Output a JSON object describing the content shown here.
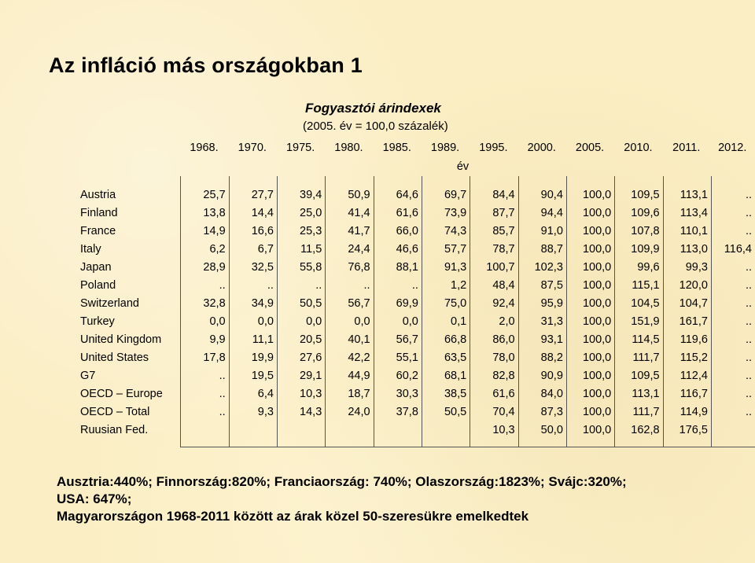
{
  "title": "Az infláció más országokban  1",
  "subtitle": "Fogyasztói árindexek",
  "subtitle_note": "(2005. év = 100,0 százalék)",
  "years": [
    "1968.",
    "1970.",
    "1975.",
    "1980.",
    "1985.",
    "1989.",
    "1995.",
    "2000.",
    "2005.",
    "2010.",
    "2011.",
    "2012."
  ],
  "year_unit": "év",
  "rows": [
    {
      "country": "Austria",
      "values": [
        "25,7",
        "27,7",
        "39,4",
        "50,9",
        "64,6",
        "69,7",
        "84,4",
        "90,4",
        "100,0",
        "109,5",
        "113,1",
        ".."
      ]
    },
    {
      "country": "Finland",
      "values": [
        "13,8",
        "14,4",
        "25,0",
        "41,4",
        "61,6",
        "73,9",
        "87,7",
        "94,4",
        "100,0",
        "109,6",
        "113,4",
        ".."
      ]
    },
    {
      "country": "France",
      "values": [
        "14,9",
        "16,6",
        "25,3",
        "41,7",
        "66,0",
        "74,3",
        "85,7",
        "91,0",
        "100,0",
        "107,8",
        "110,1",
        ".."
      ]
    },
    {
      "country": "Italy",
      "values": [
        "6,2",
        "6,7",
        "11,5",
        "24,4",
        "46,6",
        "57,7",
        "78,7",
        "88,7",
        "100,0",
        "109,9",
        "113,0",
        "116,4"
      ]
    },
    {
      "country": "Japan",
      "values": [
        "28,9",
        "32,5",
        "55,8",
        "76,8",
        "88,1",
        "91,3",
        "100,7",
        "102,3",
        "100,0",
        "99,6",
        "99,3",
        ".."
      ]
    },
    {
      "country": "Poland",
      "values": [
        "..",
        "..",
        "..",
        "..",
        "..",
        "1,2",
        "48,4",
        "87,5",
        "100,0",
        "115,1",
        "120,0",
        ".."
      ]
    },
    {
      "country": "Switzerland",
      "values": [
        "32,8",
        "34,9",
        "50,5",
        "56,7",
        "69,9",
        "75,0",
        "92,4",
        "95,9",
        "100,0",
        "104,5",
        "104,7",
        ".."
      ]
    },
    {
      "country": "Turkey",
      "values": [
        "0,0",
        "0,0",
        "0,0",
        "0,0",
        "0,0",
        "0,1",
        "2,0",
        "31,3",
        "100,0",
        "151,9",
        "161,7",
        ".."
      ]
    },
    {
      "country": "United Kingdom",
      "values": [
        "9,9",
        "11,1",
        "20,5",
        "40,1",
        "56,7",
        "66,8",
        "86,0",
        "93,1",
        "100,0",
        "114,5",
        "119,6",
        ".."
      ]
    },
    {
      "country": "United States",
      "values": [
        "17,8",
        "19,9",
        "27,6",
        "42,2",
        "55,1",
        "63,5",
        "78,0",
        "88,2",
        "100,0",
        "111,7",
        "115,2",
        ".."
      ]
    },
    {
      "country": "G7",
      "values": [
        "..",
        "19,5",
        "29,1",
        "44,9",
        "60,2",
        "68,1",
        "82,8",
        "90,9",
        "100,0",
        "109,5",
        "112,4",
        ".."
      ]
    },
    {
      "country": "OECD – Europe",
      "values": [
        "..",
        "6,4",
        "10,3",
        "18,7",
        "30,3",
        "38,5",
        "61,6",
        "84,0",
        "100,0",
        "113,1",
        "116,7",
        ".."
      ]
    },
    {
      "country": "OECD – Total",
      "values": [
        "..",
        "9,3",
        "14,3",
        "24,0",
        "37,8",
        "50,5",
        "70,4",
        "87,3",
        "100,0",
        "111,7",
        "114,9",
        ".."
      ]
    },
    {
      "country": "Ruusian Fed.",
      "values": [
        "",
        "",
        "",
        "",
        "",
        "",
        "10,3",
        "50,0",
        "100,0",
        "162,8",
        "176,5",
        ""
      ]
    }
  ],
  "footer": {
    "line1": "Ausztria:440%; Finnország:820%; Franciaország: 740%; Olaszország:1823%; Svájc:320%;",
    "line2": "USA: 647%;",
    "line3": "Magyarországon 1968-2011 között az árak közel 50-szeresükre emelkedtek"
  }
}
